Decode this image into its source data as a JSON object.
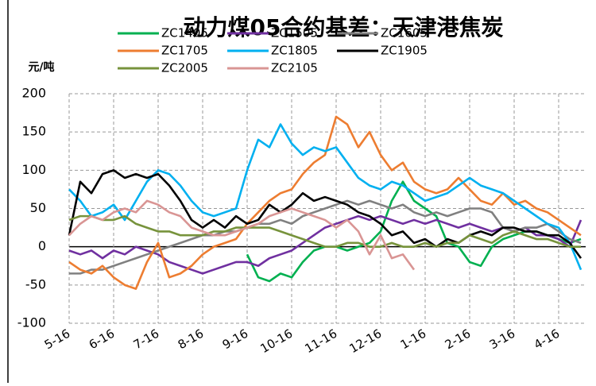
{
  "chart_data": {
    "type": "line",
    "title": "动力煤05合约基差：天津港焦炭",
    "y_label": "元/吨",
    "categories": [
      "5-16",
      null,
      null,
      null,
      "6-16",
      null,
      null,
      null,
      "7-16",
      null,
      null,
      null,
      "8-16",
      null,
      null,
      null,
      "9-16",
      null,
      null,
      null,
      "10-16",
      null,
      null,
      null,
      "11-16",
      null,
      null,
      null,
      "12-16",
      null,
      null,
      null,
      "1-16",
      null,
      null,
      null,
      "2-16",
      null,
      null,
      null,
      "3-16",
      null,
      null,
      null,
      "4-16",
      null,
      null
    ],
    "ylim": [
      -100,
      200
    ],
    "yticks": [
      -100,
      -50,
      0,
      50,
      100,
      150,
      200
    ],
    "grid": true,
    "series": [
      {
        "name": "ZC1405",
        "color": "#00b050",
        "values": [
          null,
          null,
          null,
          null,
          null,
          null,
          null,
          null,
          null,
          null,
          null,
          null,
          null,
          null,
          null,
          null,
          -10,
          -40,
          -45,
          -35,
          -40,
          -20,
          -5,
          0,
          0,
          -5,
          0,
          5,
          20,
          60,
          85,
          60,
          50,
          40,
          5,
          0,
          -20,
          -25,
          0,
          10,
          15,
          20,
          20,
          15,
          10,
          5,
          10
        ]
      },
      {
        "name": "ZC1505",
        "color": "#7030a0",
        "values": [
          -5,
          -10,
          -5,
          -15,
          -5,
          -10,
          0,
          -5,
          -10,
          -20,
          -25,
          -30,
          -35,
          -30,
          -25,
          -20,
          -20,
          -25,
          -15,
          -10,
          -5,
          5,
          15,
          25,
          30,
          35,
          40,
          35,
          40,
          35,
          30,
          35,
          30,
          35,
          30,
          25,
          30,
          25,
          20,
          25,
          20,
          25,
          15,
          15,
          10,
          0,
          35
        ]
      },
      {
        "name": "ZC1605",
        "color": "#808080",
        "values": [
          -35,
          -35,
          -30,
          -30,
          -25,
          -20,
          -15,
          -10,
          -5,
          0,
          5,
          10,
          15,
          15,
          20,
          20,
          25,
          30,
          30,
          35,
          30,
          40,
          45,
          50,
          55,
          60,
          55,
          60,
          55,
          50,
          55,
          45,
          40,
          45,
          40,
          45,
          50,
          50,
          45,
          25,
          20,
          25,
          25,
          30,
          20,
          10,
          5
        ]
      },
      {
        "name": "ZC1705",
        "color": "#ed7d31",
        "values": [
          -20,
          -30,
          -35,
          -25,
          -40,
          -50,
          -55,
          -20,
          5,
          -40,
          -35,
          -25,
          -10,
          0,
          5,
          10,
          30,
          45,
          60,
          70,
          75,
          95,
          110,
          120,
          170,
          160,
          130,
          150,
          120,
          100,
          110,
          85,
          75,
          70,
          75,
          90,
          75,
          60,
          55,
          70,
          55,
          60,
          50,
          45,
          35,
          25,
          15
        ]
      },
      {
        "name": "ZC1805",
        "color": "#00b0f0",
        "values": [
          75,
          60,
          40,
          45,
          55,
          35,
          60,
          85,
          100,
          95,
          80,
          60,
          45,
          40,
          45,
          50,
          100,
          140,
          130,
          160,
          135,
          120,
          130,
          125,
          130,
          110,
          90,
          80,
          75,
          85,
          80,
          70,
          60,
          65,
          70,
          80,
          90,
          80,
          75,
          70,
          60,
          50,
          40,
          30,
          25,
          5,
          -30
        ]
      },
      {
        "name": "ZC1905",
        "color": "#000000",
        "values": [
          15,
          85,
          70,
          95,
          100,
          90,
          95,
          90,
          95,
          80,
          60,
          35,
          25,
          35,
          25,
          40,
          30,
          35,
          55,
          45,
          55,
          70,
          60,
          65,
          60,
          55,
          45,
          40,
          30,
          15,
          20,
          5,
          10,
          0,
          10,
          5,
          15,
          20,
          15,
          25,
          25,
          20,
          20,
          15,
          15,
          5,
          -15
        ]
      },
      {
        "name": "ZC2005",
        "color": "#77933c",
        "values": [
          35,
          40,
          40,
          35,
          35,
          40,
          30,
          25,
          20,
          20,
          15,
          15,
          15,
          20,
          20,
          25,
          25,
          25,
          25,
          20,
          15,
          10,
          5,
          0,
          0,
          5,
          5,
          0,
          0,
          5,
          0,
          0,
          5,
          0,
          5,
          5,
          15,
          10,
          5,
          15,
          20,
          15,
          10,
          10,
          5,
          0,
          0
        ]
      },
      {
        "name": "ZC2105",
        "color": "#d99594",
        "values": [
          15,
          30,
          40,
          35,
          45,
          50,
          45,
          60,
          55,
          45,
          40,
          25,
          20,
          15,
          15,
          20,
          25,
          30,
          40,
          45,
          50,
          45,
          40,
          35,
          25,
          35,
          20,
          -10,
          15,
          -15,
          -10,
          -30,
          null,
          null,
          null,
          null,
          null,
          null,
          null,
          null,
          null,
          null,
          null,
          null,
          null,
          null,
          null
        ]
      }
    ]
  }
}
